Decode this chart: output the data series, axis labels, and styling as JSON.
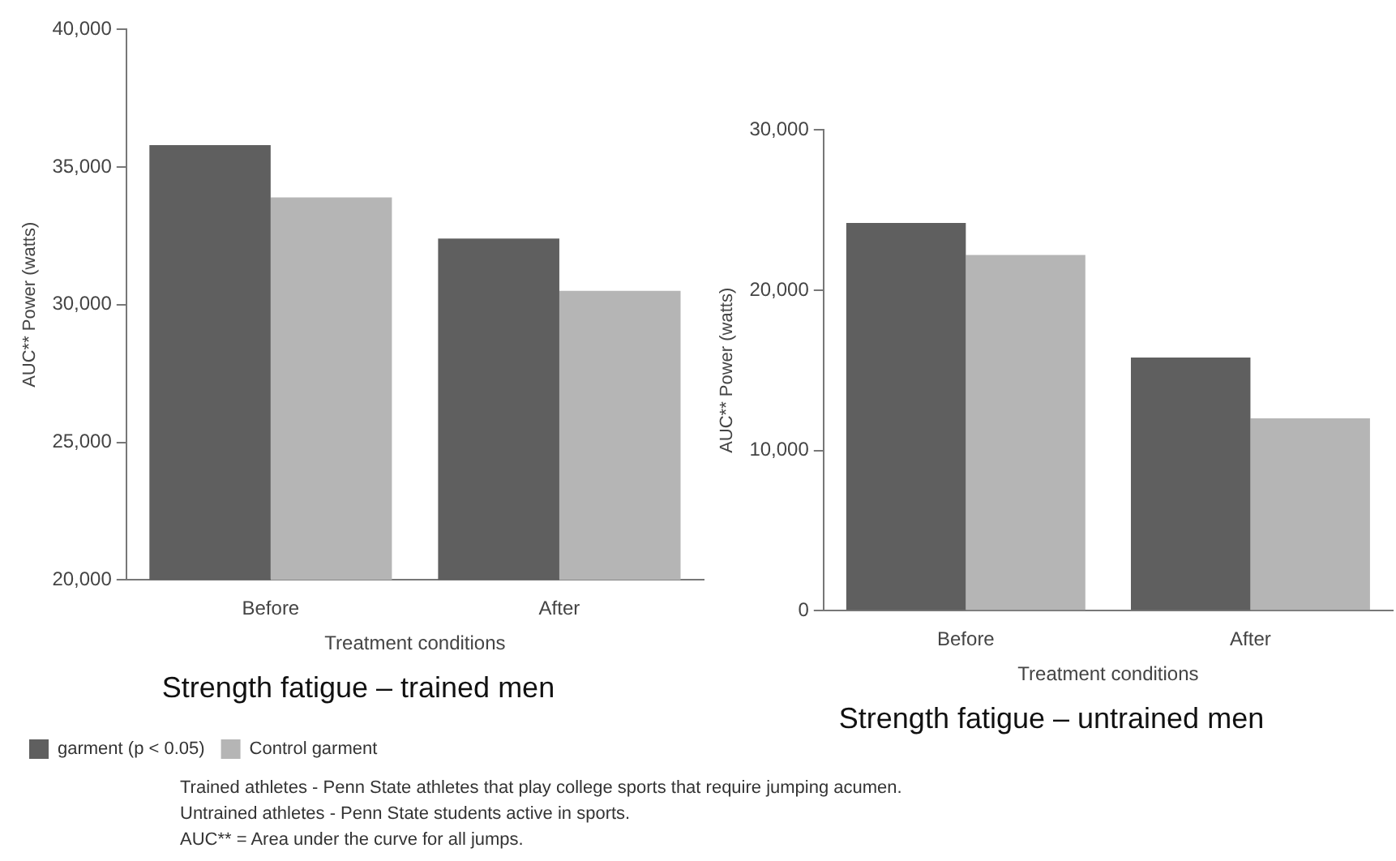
{
  "chart_data": [
    {
      "type": "bar",
      "title": "Strength fatigue – trained men",
      "xlabel": "Treatment conditions",
      "ylabel": "AUC** Power (watts)",
      "categories": [
        "Before",
        "After"
      ],
      "series": [
        {
          "name": "garment (p < 0.05)",
          "color": "#5f5f5f",
          "values": [
            35800,
            32400
          ]
        },
        {
          "name": "Control garment",
          "color": "#b5b5b5",
          "values": [
            33900,
            30500
          ]
        }
      ],
      "ylim": [
        20000,
        40000
      ],
      "yticks": [
        {
          "value": 20000,
          "label": "20,000"
        },
        {
          "value": 25000,
          "label": "25,000"
        },
        {
          "value": 30000,
          "label": "30,000"
        },
        {
          "value": 35000,
          "label": "35,000"
        },
        {
          "value": 40000,
          "label": "40,000"
        }
      ],
      "grid": false,
      "legend": "bottom",
      "annotations": [
        "Trained athletes - Penn State athletes that play college sports that require jumping acumen.",
        "Untrained athletes - Penn State students active in sports.",
        "AUC** = Area under the curve for all jumps."
      ]
    },
    {
      "type": "bar",
      "title": "Strength fatigue – untrained men",
      "xlabel": "Treatment conditions",
      "ylabel": "AUC** Power (watts)",
      "categories": [
        "Before",
        "After"
      ],
      "series": [
        {
          "color": "#5f5f5f",
          "values": [
            24200,
            15800
          ]
        },
        {
          "color": "#b5b5b5",
          "values": [
            22200,
            12000
          ]
        }
      ],
      "ylim": [
        0,
        30000
      ],
      "yticks": [
        0,
        {
          "value": 10000,
          "label": "10,000"
        },
        {
          "value": 20000,
          "label": "20,000"
        },
        {
          "value": 30000,
          "label": "30,000"
        }
      ],
      "grid": false
    }
  ]
}
